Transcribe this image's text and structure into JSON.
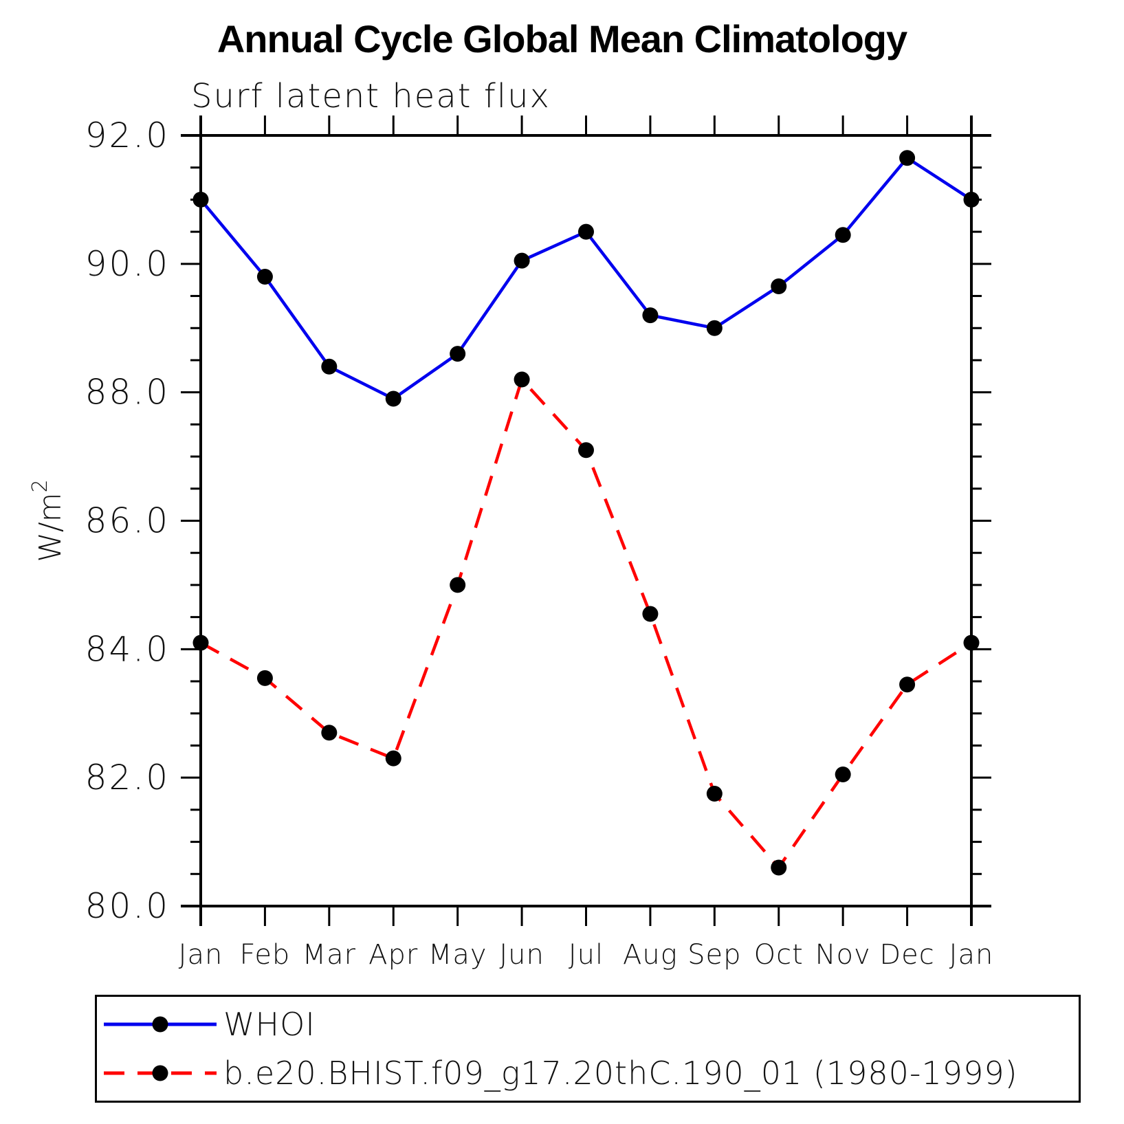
{
  "chart_data": {
    "type": "line",
    "title": "Annual Cycle Global Mean Climatology",
    "subtitle": "Surf latent heat flux",
    "ylabel_base": "W/m",
    "ylabel_sup": "2",
    "categories": [
      "Jan",
      "Feb",
      "Mar",
      "Apr",
      "May",
      "Jun",
      "Jul",
      "Aug",
      "Sep",
      "Oct",
      "Nov",
      "Dec",
      "Jan"
    ],
    "ylim": [
      80.0,
      92.0
    ],
    "yticks": [
      {
        "value": 92.0,
        "label": "92.0"
      },
      {
        "value": 90.0,
        "label": "90.0"
      },
      {
        "value": 88.0,
        "label": "88.0"
      },
      {
        "value": 86.0,
        "label": "86.0"
      },
      {
        "value": 84.0,
        "label": "84.0"
      },
      {
        "value": 82.0,
        "label": "82.0"
      },
      {
        "value": 80.0,
        "label": "80.0"
      }
    ],
    "yminor_step": 0.5,
    "grid": false,
    "legend_position": "bottom",
    "axis_color": "#000000",
    "marker": "circle",
    "marker_color": "#000000",
    "series": [
      {
        "name": "WHOI",
        "color": "#0000EE",
        "style": "solid",
        "values": [
          91.0,
          89.8,
          88.4,
          87.9,
          88.6,
          90.05,
          90.5,
          89.2,
          89.0,
          89.65,
          90.45,
          91.65,
          91.0
        ]
      },
      {
        "name": "b.e20.BHIST.f09_g17.20thC.190_01 (1980-1999)",
        "color": "#FF0000",
        "style": "dashed",
        "values": [
          84.1,
          83.55,
          82.7,
          82.3,
          85.0,
          88.2,
          87.1,
          84.55,
          81.75,
          80.6,
          82.05,
          83.45,
          84.1
        ]
      }
    ]
  }
}
